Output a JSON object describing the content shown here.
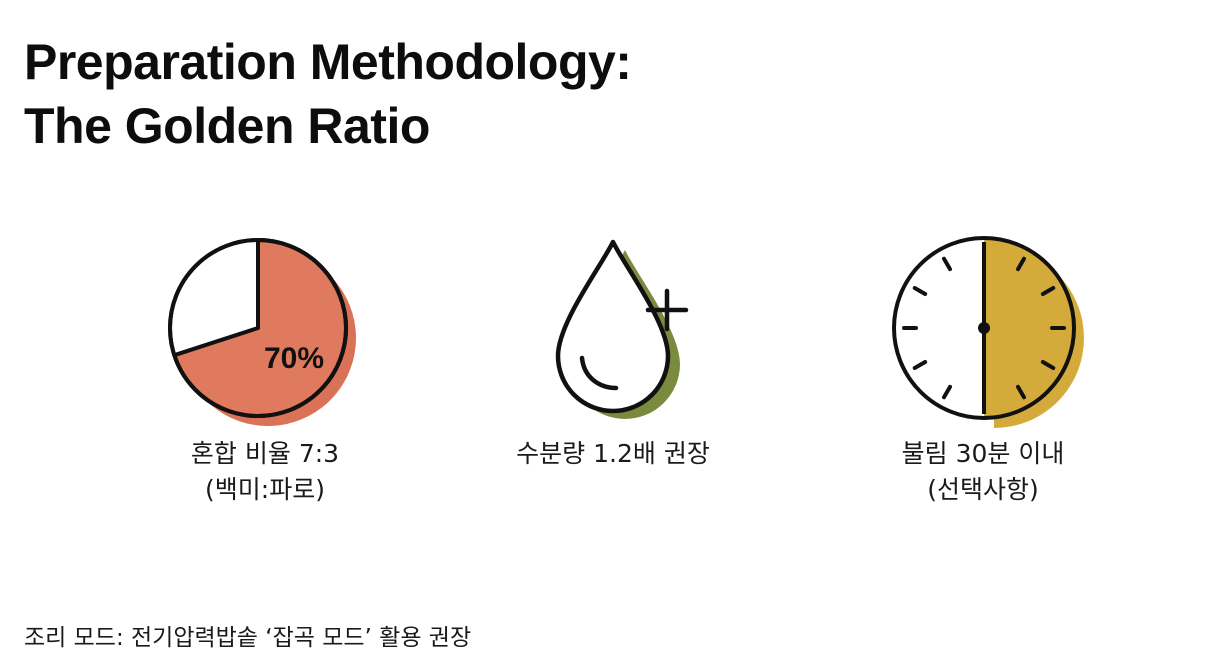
{
  "title": {
    "line1": "Preparation Methodology:",
    "line2": "The Golden Ratio"
  },
  "cards": [
    {
      "icon": "pie-chart-icon",
      "percent_label": "70%",
      "percent_value": 70,
      "fill_color": "#e07a5f",
      "caption_line1": "혼합 비율 7:3",
      "caption_line2": "(백미:파로)"
    },
    {
      "icon": "water-drop-plus-icon",
      "accent_color": "#7a8a3e",
      "caption_line1": "수분량 1.2배 권장"
    },
    {
      "icon": "clock-half-icon",
      "fill_fraction": 0.5,
      "accent_color": "#d4aa3a",
      "caption_line1": "불림 30분 이내",
      "caption_line2": "(선택사항)"
    }
  ],
  "footer": {
    "text": "조리 모드: 전기압력밥솥 ‘잡곡 모드’ 활용 권장"
  }
}
